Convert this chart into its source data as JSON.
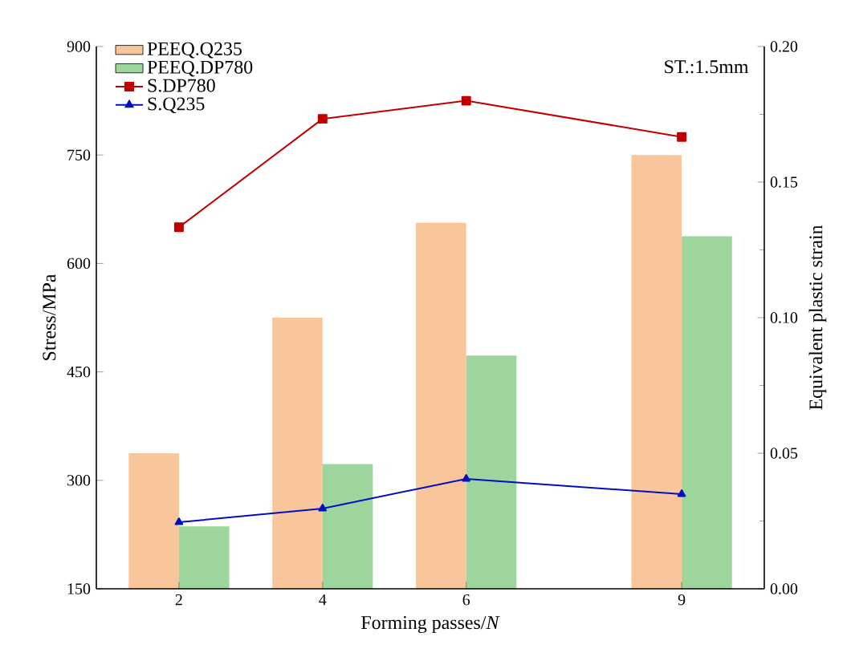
{
  "chart_data": {
    "type": "bar",
    "x": [
      2,
      4,
      6,
      9
    ],
    "xlim": [
      0.85,
      10.15
    ],
    "xticks": [
      2,
      4,
      6,
      9
    ],
    "xlabel": "Forming passes/*N*",
    "ylabel": "Stress/MPa",
    "y2label": "Equivalent plastic strain",
    "ylim": [
      150,
      900
    ],
    "yticks": [
      150,
      300,
      450,
      600,
      750,
      900
    ],
    "y2lim": [
      0,
      0.2
    ],
    "y2ticks": [
      {
        "value": 0,
        "label": "0.00"
      },
      {
        "value": 0.05,
        "label": "0.05"
      },
      {
        "value": 0.1,
        "label": "0.10"
      },
      {
        "value": 0.15,
        "label": "0.15"
      },
      {
        "value": 0.2,
        "label": "0.20"
      }
    ],
    "legend": "top left",
    "annotations": [
      "ST.:1.5mm"
    ],
    "series": [
      {
        "name": "PEEQ.Q235",
        "axis": "y2",
        "color": "#f9c59a",
        "values": [
          0.05,
          0.1,
          0.135,
          0.16
        ]
      },
      {
        "name": "PEEQ.DP780",
        "axis": "y2",
        "color": "#9dd69d",
        "values": [
          0.023,
          0.046,
          0.086,
          0.13
        ]
      },
      {
        "name": "S.DP780",
        "type": "line",
        "marker": "square",
        "line_style": "solid",
        "color": "#c00000",
        "values": [
          650,
          800,
          825,
          775
        ]
      },
      {
        "name": "S.Q235",
        "type": "line",
        "marker": "triangle",
        "line_style": "solid",
        "color": "#0010c0",
        "values": [
          242,
          261,
          302,
          281
        ]
      }
    ]
  }
}
